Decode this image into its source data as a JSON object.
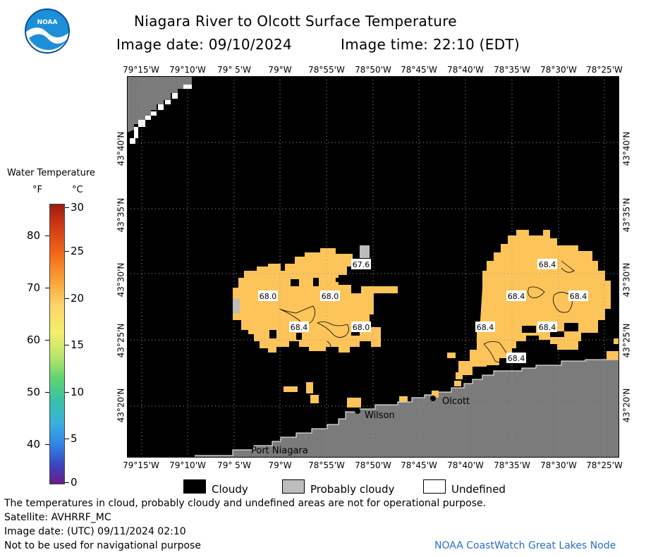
{
  "agency_logo_text": "NOAA",
  "header": {
    "title": "Niagara River to Olcott Surface Temperature",
    "image_date_label": "Image date: 09/10/2024",
    "image_time_label": "Image time: 22:10 (EDT)"
  },
  "longitude_labels": [
    "79°15'W",
    "79°10'W",
    "79° 5'W",
    "79°W",
    "78°55'W",
    "78°50'W",
    "78°45'W",
    "78°40'W",
    "78°35'W",
    "78°30'W",
    "78°25'W"
  ],
  "latitude_labels": [
    "43°40'N",
    "43°35'N",
    "43°30'N",
    "43°25'N",
    "43°20'N"
  ],
  "temperature_scale": {
    "title": "Water Temperature",
    "unit_f": "°F",
    "unit_c": "°C",
    "f_ticks": [
      "80",
      "70",
      "60",
      "50",
      "40"
    ],
    "c_ticks": [
      "30",
      "25",
      "20",
      "15",
      "10",
      "5",
      "0"
    ]
  },
  "map": {
    "temperature_labels": [
      {
        "value": "67.6"
      },
      {
        "value": "68.0"
      },
      {
        "value": "68.0"
      },
      {
        "value": "68.4"
      },
      {
        "value": "68.0"
      },
      {
        "value": "68.4"
      },
      {
        "value": "68.4"
      },
      {
        "value": "68.4"
      },
      {
        "value": "68.4"
      },
      {
        "value": "68.4"
      },
      {
        "value": "68.4"
      }
    ],
    "places": [
      "Olcott",
      "Wilson",
      "Port Niagara"
    ],
    "colors": {
      "water": "#fdc45a",
      "cloud": "#000000",
      "land": "#7b7b7b",
      "probably_cloudy": "#bdbdbd"
    }
  },
  "legend": {
    "cloudy": "Cloudy",
    "probably_cloudy": "Probably cloudy",
    "undefined": "Undefined"
  },
  "footer": {
    "disclaimer": "The temperatures in cloud, probably cloudy and undefined areas are not for operational purpose.",
    "satellite": "Satellite: AVHRRF_MC",
    "utc_date": "Image date: (UTC) 09/11/2024  02:10",
    "navigation": "Not to be used for navigational purpose",
    "credit": "NOAA CoastWatch Great Lakes Node"
  }
}
